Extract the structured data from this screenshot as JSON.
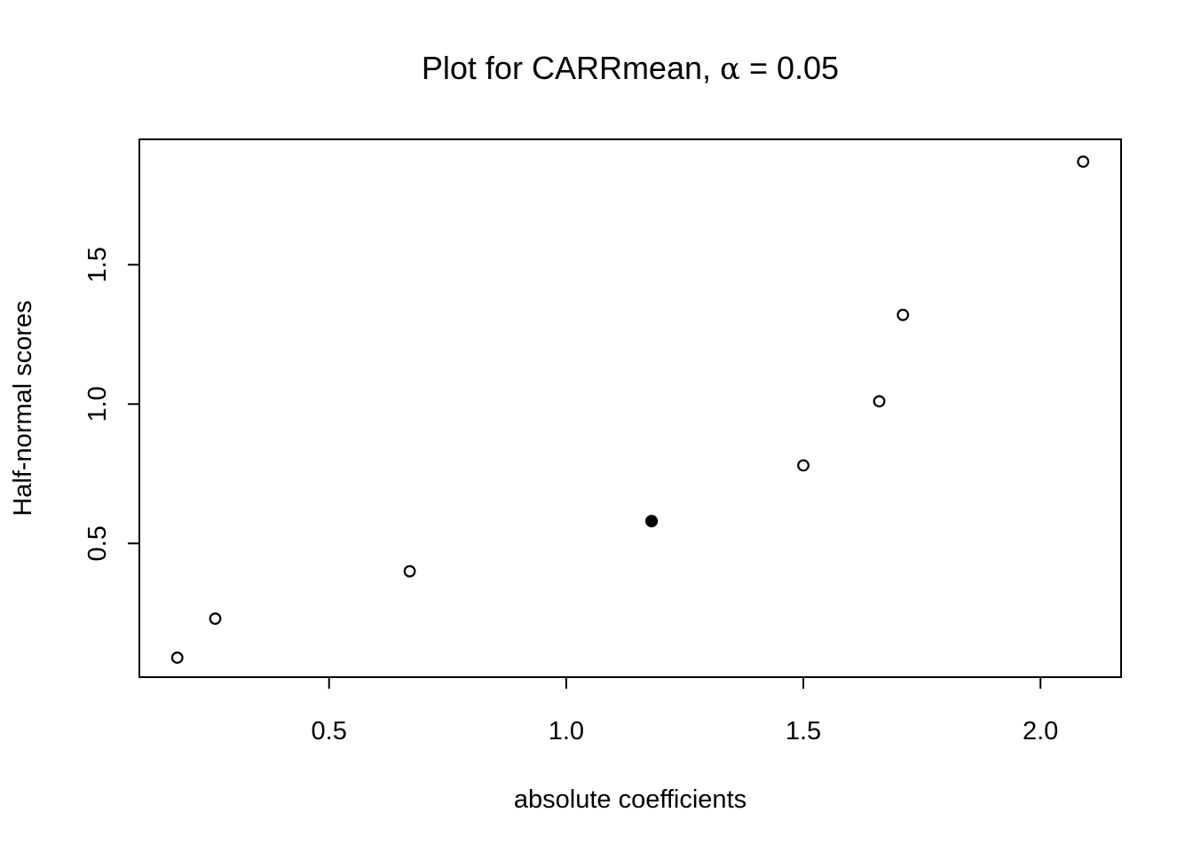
{
  "chart_data": {
    "type": "scatter",
    "title": {
      "prefix": "Plot for CARRmean, ",
      "alpha_symbol": "α",
      "equals": " = ",
      "alpha_value": "0.05"
    },
    "xlabel": "absolute coefficients",
    "ylabel": "Half-normal scores",
    "xlim": [
      0.1,
      2.17
    ],
    "ylim": [
      0.02,
      1.95
    ],
    "x_ticks": [
      0.5,
      1.0,
      1.5,
      2.0
    ],
    "x_tick_labels": [
      "0.5",
      "1.0",
      "1.5",
      "2.0"
    ],
    "y_ticks": [
      0.5,
      1.0,
      1.5
    ],
    "y_tick_labels": [
      "0.5",
      "1.0",
      "1.5"
    ],
    "grid": false,
    "points": [
      {
        "x": 0.18,
        "y": 0.09,
        "filled": false
      },
      {
        "x": 0.26,
        "y": 0.23,
        "filled": false
      },
      {
        "x": 0.67,
        "y": 0.4,
        "filled": false
      },
      {
        "x": 1.18,
        "y": 0.58,
        "filled": true
      },
      {
        "x": 1.5,
        "y": 0.78,
        "filled": false
      },
      {
        "x": 1.66,
        "y": 1.01,
        "filled": false
      },
      {
        "x": 1.71,
        "y": 1.32,
        "filled": false
      },
      {
        "x": 2.09,
        "y": 1.87,
        "filled": false
      }
    ],
    "colors": {
      "point": "#000000",
      "axes": "#000000",
      "background": "#ffffff"
    }
  }
}
